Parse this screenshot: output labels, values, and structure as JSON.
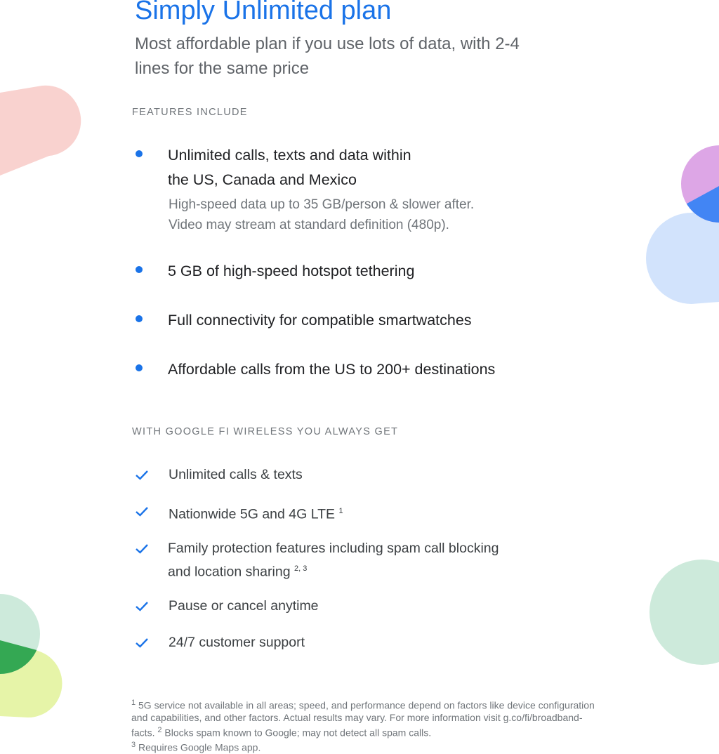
{
  "title": "Simply Unlimited plan",
  "subtitle": "Most affordable plan if you use lots of data, with 2-4 lines for the same price",
  "features_label": "FEATURES INCLUDE",
  "features": [
    {
      "text": "Unlimited calls, texts and data within",
      "text2": "the US, Canada and Mexico",
      "sub1": "High-speed data up to 35 GB/person & slower after.",
      "sub2": "Video may stream at standard definition (480p)."
    },
    {
      "text": "5 GB of high-speed hotspot tethering"
    },
    {
      "text": "Full connectivity for compatible smartwatches"
    },
    {
      "text": "Affordable calls from the US to 200+ destinations"
    }
  ],
  "always_label": "WITH GOOGLE FI WIRELESS YOU ALWAYS GET",
  "always": [
    {
      "text": "Unlimited calls & texts"
    },
    {
      "text": "Nationwide 5G and 4G LTE",
      "sup": "1"
    },
    {
      "text": "Family protection features including spam call blocking",
      "text2": "and location sharing",
      "sup": "2, 3"
    },
    {
      "text": "Pause or cancel anytime"
    },
    {
      "text": "24/7 customer support"
    }
  ],
  "footnotes": {
    "n1": "1",
    "t1": " 5G service not available in all areas; speed, and performance depend on factors like device configuration and capabilities, and other factors. Actual results may vary. For more information visit g.co/fi/broadband-facts. ",
    "n2": "2",
    "t2": " Blocks spam known to Google; may not detect all spam calls. ",
    "n3": "3",
    "t3": " Requires Google Maps app."
  },
  "colors": {
    "accent": "#1a73e8"
  }
}
